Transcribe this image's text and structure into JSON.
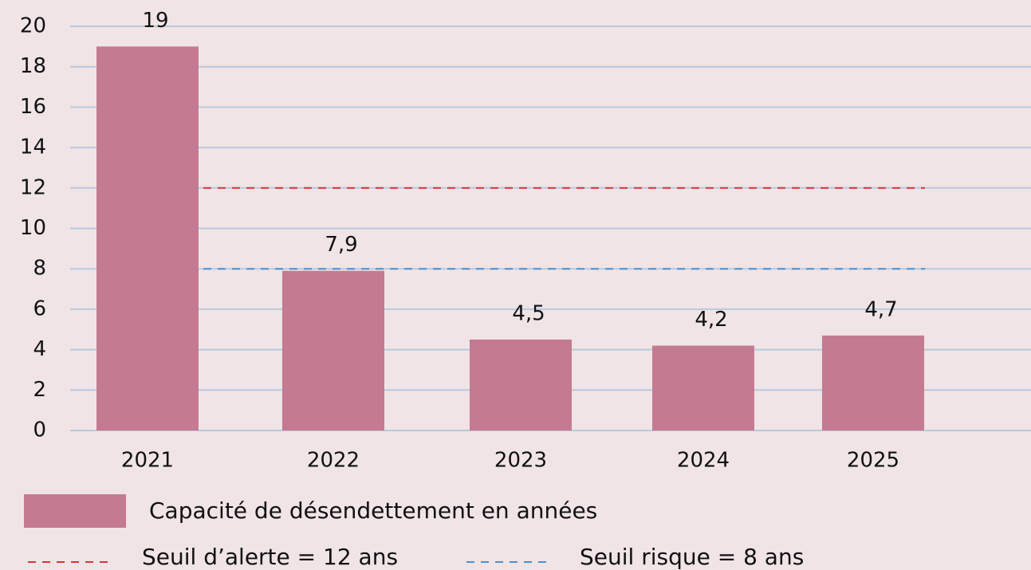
{
  "chart_data": {
    "type": "bar",
    "categories": [
      "2021",
      "2022",
      "2023",
      "2024",
      "2025"
    ],
    "values": [
      19,
      7.9,
      4.5,
      4.2,
      4.7
    ],
    "value_labels": [
      "19",
      "7,9",
      "4,5",
      "4,2",
      "4,7"
    ],
    "name": "Capacité de désendettement en années",
    "color": "#c47a90",
    "ylim": [
      0,
      20
    ],
    "yticks": [
      0,
      2,
      4,
      6,
      8,
      10,
      12,
      14,
      16,
      18,
      20
    ],
    "grid": true,
    "reference_lines": [
      {
        "value": 12,
        "color": "#d9343a",
        "label": "Seuil d’alerte = 12 ans"
      },
      {
        "value": 8,
        "color": "#4a90d0",
        "label": "Seuil risque = 8 ans"
      }
    ]
  }
}
